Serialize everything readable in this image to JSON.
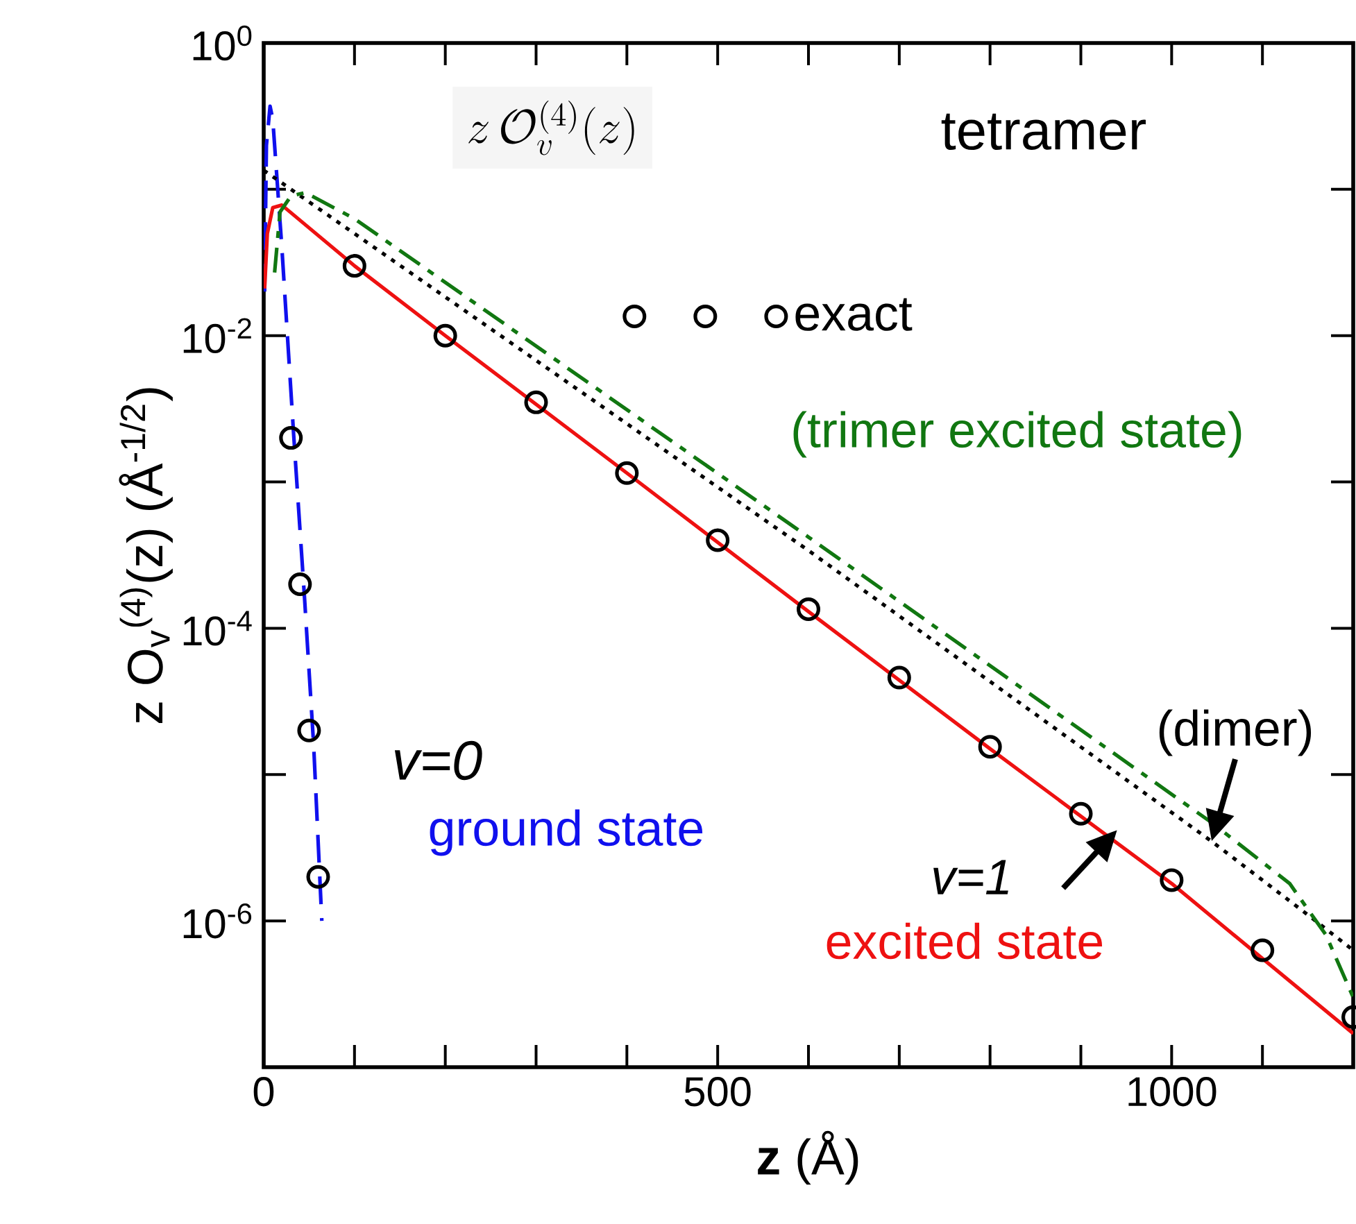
{
  "chart_data": {
    "type": "line",
    "xlabel": "**z** (Å)",
    "ylabel": "z O$_{v}$$^{(4)}$(z)   (Å$^{-1/2}$)",
    "log": "y",
    "legend": "top",
    "xlim": [
      0,
      1200
    ],
    "ylim": [
      1e-07,
      1
    ],
    "xticks": [
      0,
      {
        "value": 100,
        "label": null
      },
      {
        "value": 200,
        "label": null
      },
      {
        "value": 300,
        "label": null
      },
      {
        "value": 400,
        "label": null
      },
      500,
      {
        "value": 600,
        "label": null
      },
      {
        "value": 700,
        "label": null
      },
      {
        "value": 800,
        "label": null
      },
      {
        "value": 900,
        "label": null
      },
      1000,
      {
        "value": 1100,
        "label": null
      }
    ],
    "yticks": [
      {
        "value": 1,
        "label": "10$^{0}$"
      },
      {
        "value": 0.1,
        "label": null
      },
      {
        "value": 0.01,
        "label": "10$^{-2}$"
      },
      {
        "value": 0.001,
        "label": null
      },
      {
        "value": 0.0001,
        "label": "10$^{-4}$"
      },
      {
        "value": 1e-05,
        "label": null
      },
      {
        "value": 1e-06,
        "label": "10$^{-6}$"
      }
    ],
    "annotations": [
      "z\\,\\mathcal{O}_v^{(4)}(z)",
      "tetramer",
      "*v=0*",
      "*v=1*"
    ],
    "series": [
      {
        "name": "exact",
        "type": "scatter",
        "marker": "circle",
        "color": "#000000",
        "x": [
          30,
          40,
          50,
          60,
          100,
          200,
          300,
          400,
          500,
          600,
          700,
          800,
          900,
          1000,
          1100,
          1200
        ],
        "values": [
          0.002,
          0.0002,
          2e-05,
          2e-06,
          0.03,
          0.01,
          0.0035,
          0.00115,
          0.0004,
          0.000135,
          4.6e-05,
          1.55e-05,
          5.4e-06,
          1.9e-06,
          6.3e-07,
          2.2e-07
        ]
      },
      {
        "name": "ground state",
        "line_style": "dashed",
        "color": "#1010ee",
        "x": [
          1,
          3,
          7,
          10,
          20,
          33,
          45,
          55,
          64
        ],
        "values": [
          0.02,
          0.2,
          0.37,
          0.3,
          0.04,
          0.0021,
          0.00016,
          1.6e-05,
          1e-06
        ]
      },
      {
        "name": "excited state",
        "line_style": "solid",
        "color": "#ee1111",
        "x": [
          1,
          4,
          10,
          20,
          100,
          200,
          400,
          600,
          800,
          1000,
          1200
        ],
        "values": [
          0.021,
          0.05,
          0.075,
          0.078,
          0.03,
          0.01,
          0.00115,
          0.00013,
          1.5e-05,
          1.8e-06,
          1.7e-07
        ]
      },
      {
        "name": "(dimer)",
        "line_style": "dotted",
        "color": "#000000",
        "x": [
          0,
          600,
          1044,
          1150,
          1200
        ],
        "values": [
          0.135,
          0.00034,
          3.5e-06,
          1.1e-06,
          6.3e-07
        ]
      },
      {
        "name": "(trimer excited state)",
        "line_style": "dashdot",
        "color": "#117711",
        "x": [
          12,
          18,
          30,
          46,
          100,
          600,
          1044,
          1130,
          1170,
          1200
        ],
        "values": [
          0.027,
          0.07,
          0.09,
          0.095,
          0.063,
          0.00042,
          4.7e-06,
          1.8e-06,
          8e-07,
          3e-07
        ]
      }
    ]
  }
}
